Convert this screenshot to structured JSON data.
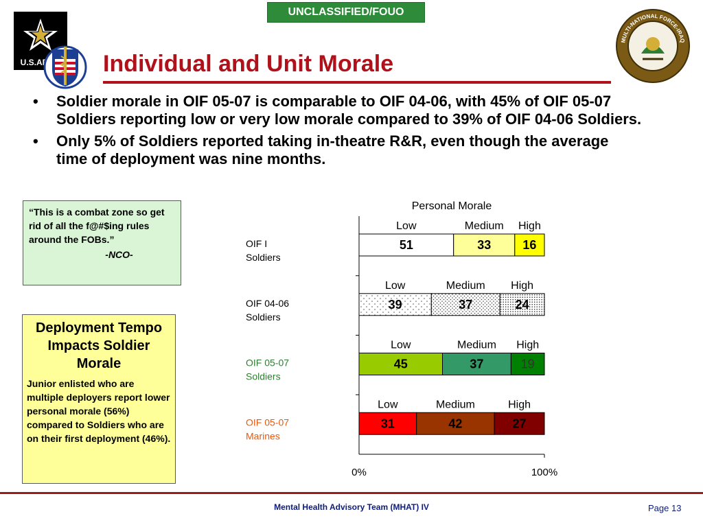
{
  "banner": "UNCLASSIFIED/FOUO",
  "title": "Individual and Unit Morale",
  "logos": {
    "army_text": "U.S.ARMY",
    "mnf_text": "MULTI-NATIONAL FORCE-IRAQ"
  },
  "bullets": [
    "Soldier morale in OIF 05-07 is comparable to OIF 04-06, with 45% of OIF 05-07 Soldiers reporting low or very low morale compared to 39% of OIF 04-06 Soldiers.",
    "Only 5% of Soldiers reported taking in-theatre R&R, even though the average time of deployment was nine months."
  ],
  "quote": {
    "text": "“This is a combat zone so get rid of all the f@#$ing rules around the FOBs.”",
    "attribution": "-NCO-"
  },
  "info_box": {
    "heading": "Deployment Tempo Impacts Soldier Morale",
    "body": "Junior enlisted who are multiple deployers report lower personal morale (56%) compared to Soldiers who are on their first deployment (46%)."
  },
  "chart_data": {
    "type": "bar",
    "orientation": "horizontal-stacked-100",
    "title": "Personal Morale",
    "xlim": [
      0,
      100
    ],
    "x_tick_labels": [
      "0%",
      "100%"
    ],
    "segment_labels": [
      "Low",
      "Medium",
      "High"
    ],
    "groups": [
      {
        "label": "OIF I Soldiers",
        "label_color": "#000000",
        "values": [
          51,
          33,
          16
        ],
        "fills": [
          "#ffffff",
          "#ffff99",
          "#ffff00"
        ],
        "patterns": [
          "none",
          "none",
          "none"
        ],
        "text_colors": [
          "#000000",
          "#000000",
          "#000000"
        ]
      },
      {
        "label": "OIF 04-06 Soldiers",
        "label_color": "#000000",
        "values": [
          39,
          37,
          24
        ],
        "fills": [
          "#ffffff",
          "#ffffff",
          "#ffffff"
        ],
        "patterns": [
          "sparse-dots",
          "dots",
          "dense-dots"
        ],
        "text_colors": [
          "#000000",
          "#000000",
          "#000000"
        ]
      },
      {
        "label": "OIF 05-07 Soldiers",
        "label_color": "#2e7d32",
        "values": [
          45,
          37,
          19
        ],
        "fills": [
          "#99cc00",
          "#339966",
          "#008000"
        ],
        "patterns": [
          "none",
          "none",
          "none"
        ],
        "text_colors": [
          "#000000",
          "#000000",
          "#333333"
        ]
      },
      {
        "label": "OIF 05-07 Marines",
        "label_color": "#e8590c",
        "values": [
          31,
          42,
          27
        ],
        "fills": [
          "#ff0000",
          "#993300",
          "#800000"
        ],
        "patterns": [
          "none",
          "none",
          "none"
        ],
        "text_colors": [
          "#000000",
          "#000000",
          "#000000"
        ]
      }
    ]
  },
  "footer": {
    "text": "Mental Health Advisory Team (MHAT) IV",
    "page": "Page 13"
  }
}
